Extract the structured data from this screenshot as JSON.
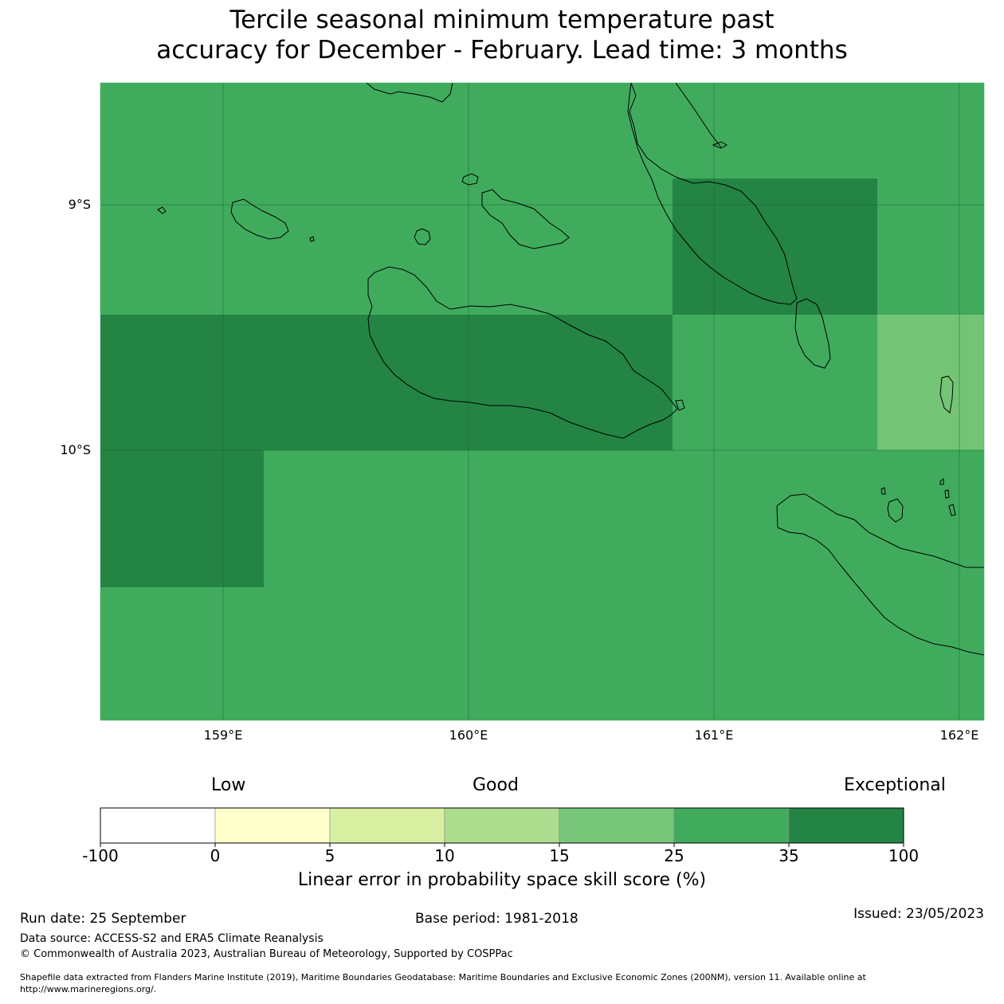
{
  "title_line1": "Tercile seasonal minimum temperature past",
  "title_line2": "accuracy for December - February. Lead time: 3 months",
  "map": {
    "lat_labels": [
      "9°S",
      "10°S"
    ],
    "lon_labels": [
      "159°E",
      "160°E",
      "161°E",
      "162°E"
    ],
    "colors": {
      "cat_15_25": "#74c476",
      "cat_25_35": "#41ab5d",
      "cat_35_100": "#238443"
    }
  },
  "colorbar": {
    "categories": [
      "Low",
      "Good",
      "Exceptional"
    ],
    "ticks": [
      "-100",
      "0",
      "5",
      "10",
      "15",
      "25",
      "35",
      "100"
    ],
    "colors": [
      "#ffffff",
      "#ffffcc",
      "#d9f0a3",
      "#addd8e",
      "#78c679",
      "#41ab5d",
      "#238443"
    ],
    "title": "Linear error in probability space skill score (%)"
  },
  "footer": {
    "run_date": "Run date: 25 September",
    "base_period": "Base period: 1981-2018",
    "issued": "Issued: 23/05/2023",
    "data_source": "Data source: ACCESS-S2 and ERA5 Climate Reanalysis",
    "copyright": "© Commonwealth of Australia 2023, Australian Bureau of Meteorology, Supported by COSPPac",
    "shapefile_line1": "Shapefile data extracted from Flanders Marine Institute (2019), Maritime Boundaries Geodatabase: Maritime Boundaries and Exclusive Economic Zones (200NM), version 11. Available online at",
    "shapefile_line2": "http://www.marineregions.org/."
  }
}
